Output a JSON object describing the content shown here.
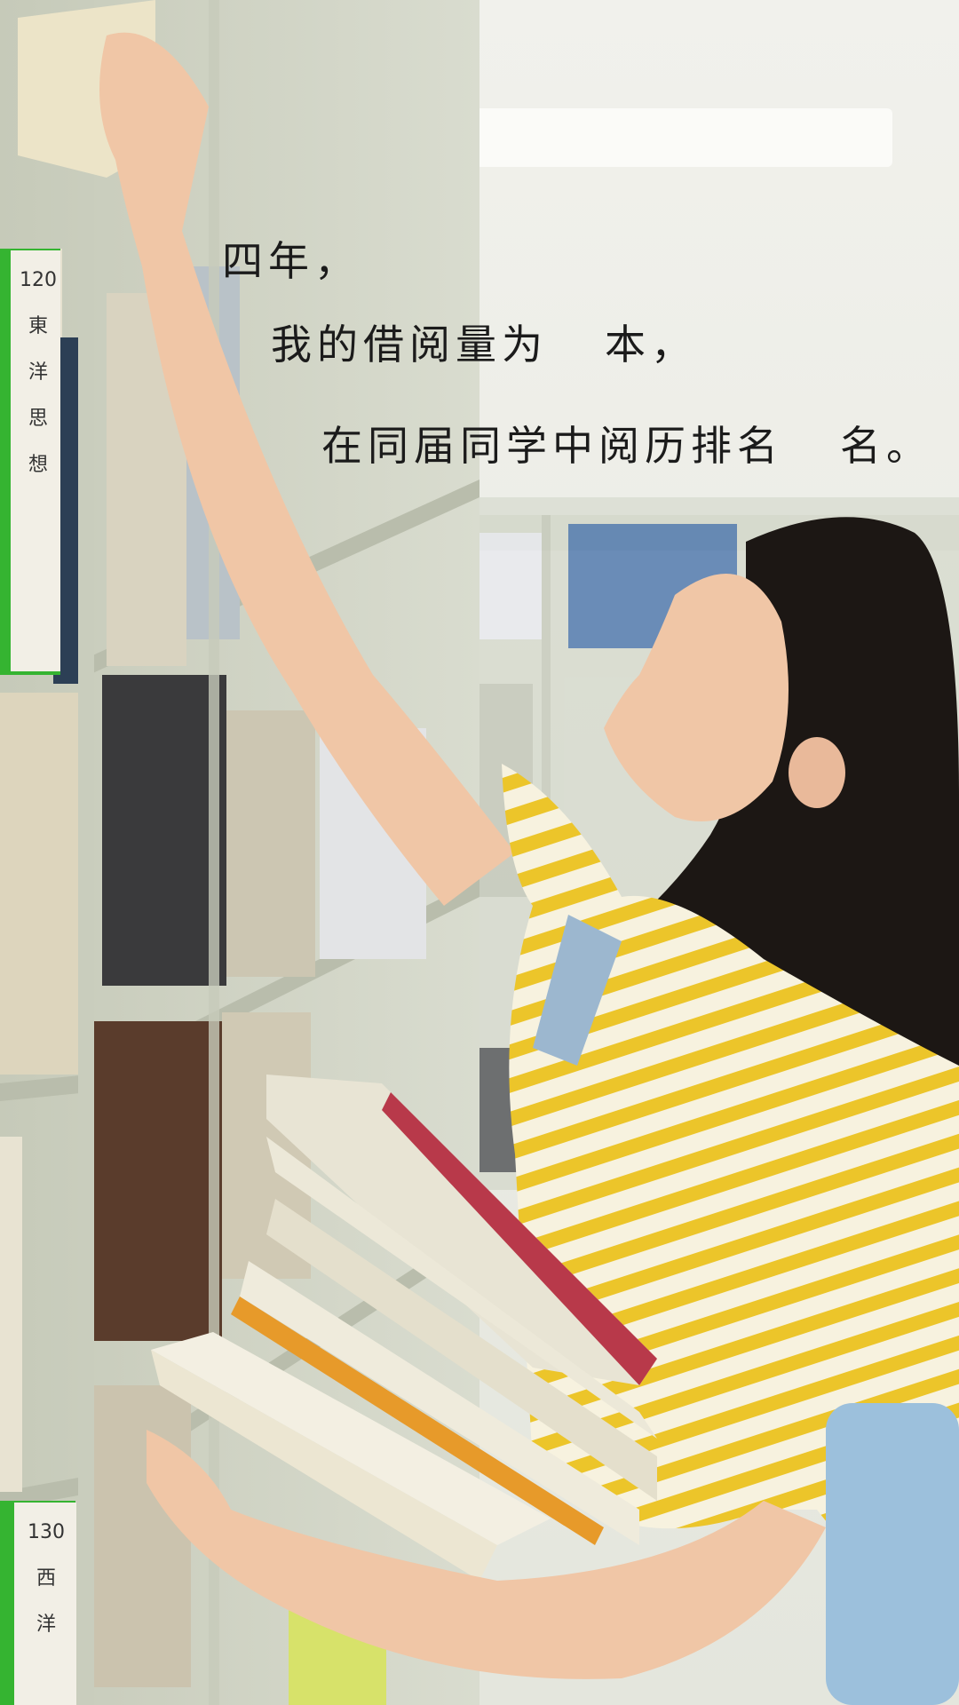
{
  "overlay": {
    "line1": "四年，",
    "line2_before": "我的借阅量为",
    "line2_after": "本，",
    "line3_before": "在同届同学中阅历排名",
    "line3_after": "名。"
  },
  "book_spines": {
    "upper_left": [
      "120",
      "東",
      "洋",
      "思",
      "想"
    ],
    "lower_left": [
      "130",
      "西",
      "洋"
    ]
  },
  "colors": {
    "shelf": "#cfd3c4",
    "shirt_stripe": "#ecc52a",
    "shirt_base": "#f7f2df",
    "hair": "#1c1714",
    "skin": "#f0c6a6",
    "spine_green": "#35b431",
    "book_red": "#b8394a",
    "book_orange": "#e79a2a"
  }
}
